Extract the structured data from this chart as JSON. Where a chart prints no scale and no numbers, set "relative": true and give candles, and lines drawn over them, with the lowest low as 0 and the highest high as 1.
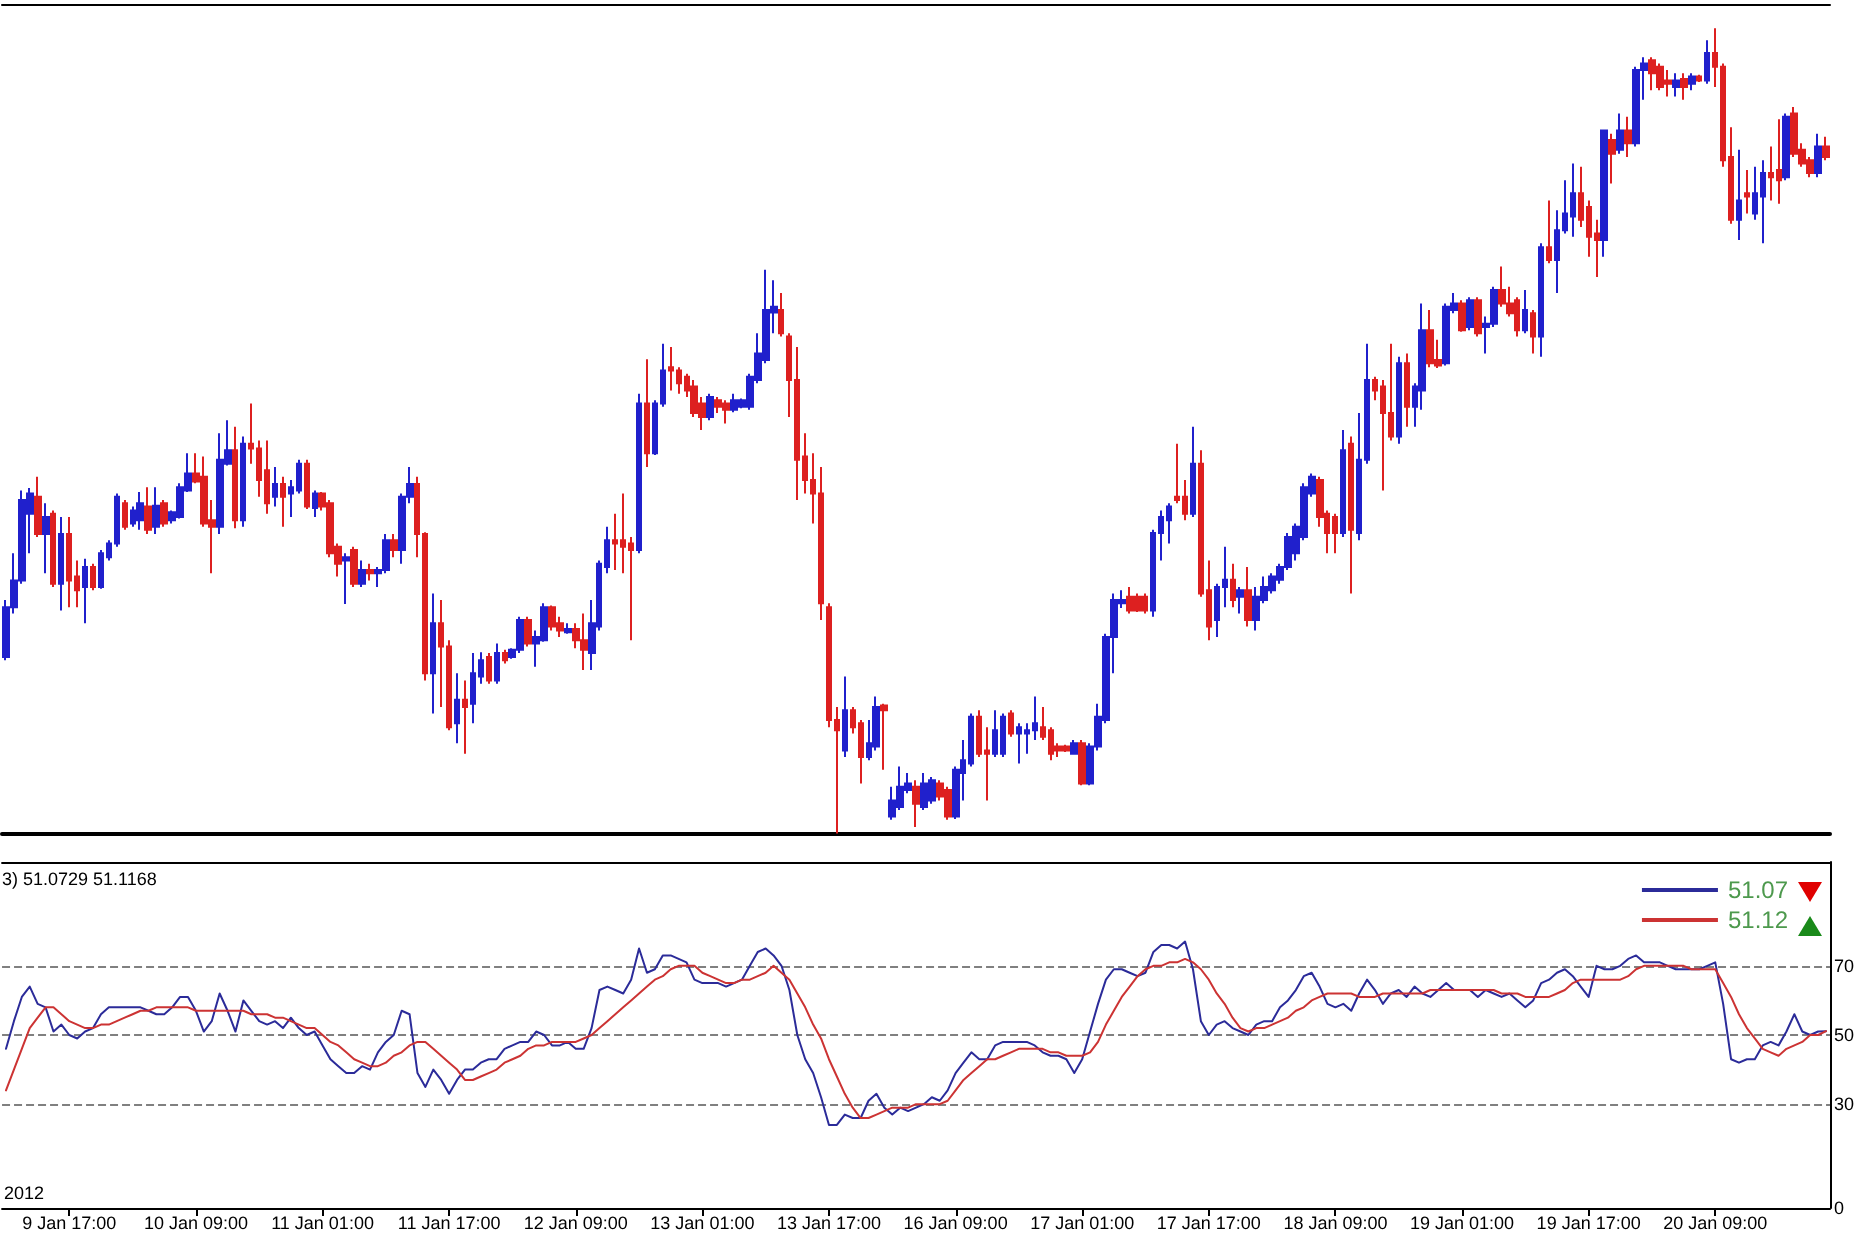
{
  "chart_data": [
    {
      "type": "candlestick",
      "relative": true,
      "categories": [
        null,
        null,
        null,
        null,
        null,
        null,
        null,
        null,
        "9 Jan 17:00",
        null,
        null,
        null,
        null,
        null,
        null,
        null,
        null,
        null,
        null,
        null,
        null,
        null,
        null,
        null,
        "10 Jan 09:00",
        null,
        null,
        null,
        null,
        null,
        null,
        null,
        null,
        null,
        null,
        null,
        null,
        null,
        null,
        null,
        "11 Jan 01:00",
        null,
        null,
        null,
        null,
        null,
        null,
        null,
        null,
        null,
        null,
        null,
        null,
        null,
        null,
        null,
        "11 Jan 17:00",
        null,
        null,
        null,
        null,
        null,
        null,
        null,
        null,
        null,
        null,
        null,
        null,
        null,
        null,
        null,
        "12 Jan 09:00",
        null,
        null,
        null,
        null,
        null,
        null,
        null,
        null,
        null,
        null,
        null,
        null,
        null,
        null,
        null,
        "13 Jan 01:00",
        null,
        null,
        null,
        null,
        null,
        null,
        null,
        null,
        null,
        null,
        null,
        null,
        null,
        null,
        null,
        "13 Jan 17:00",
        null,
        null,
        null,
        null,
        null,
        null,
        null,
        null,
        null,
        null,
        null,
        null,
        null,
        null,
        null,
        "16 Jan 09:00",
        null,
        null,
        null,
        null,
        null,
        null,
        null,
        null,
        null,
        null,
        null,
        null,
        null,
        null,
        null,
        "17 Jan 01:00",
        null,
        null,
        null,
        null,
        null,
        null,
        null,
        null,
        null,
        null,
        null,
        null,
        null,
        null,
        null,
        "17 Jan 17:00",
        null,
        null,
        null,
        null,
        null,
        null,
        null,
        null,
        null,
        null,
        null,
        null,
        null,
        null,
        null,
        "18 Jan 09:00",
        null,
        null,
        null,
        null,
        null,
        null,
        null,
        null,
        null,
        null,
        null,
        null,
        null,
        null,
        null,
        "19 Jan 01:00",
        null,
        null,
        null,
        null,
        null,
        null,
        null,
        null,
        null,
        null,
        null,
        null,
        null,
        null,
        null,
        "19 Jan 17:00",
        null,
        null,
        null,
        null,
        null,
        null,
        null,
        null,
        null,
        null,
        null,
        null,
        null,
        null,
        null,
        "20 Jan 09:00",
        null,
        null,
        null,
        null,
        null,
        null,
        null,
        null,
        null,
        null,
        null,
        null,
        null,
        null
      ],
      "ohlc": [
        [
          0.219,
          0.29,
          0.215,
          0.281
        ],
        [
          0.281,
          0.348,
          0.273,
          0.314
        ],
        [
          0.314,
          0.426,
          0.31,
          0.414
        ],
        [
          0.397,
          0.429,
          0.348,
          0.422
        ],
        [
          0.418,
          0.443,
          0.368,
          0.372
        ],
        [
          0.372,
          0.41,
          0.323,
          0.393
        ],
        [
          0.397,
          0.401,
          0.306,
          0.31
        ],
        [
          0.31,
          0.393,
          0.277,
          0.372
        ],
        [
          0.372,
          0.393,
          0.281,
          0.314
        ],
        [
          0.319,
          0.339,
          0.281,
          0.302
        ],
        [
          0.306,
          0.341,
          0.261,
          0.331
        ],
        [
          0.331,
          0.335,
          0.302,
          0.306
        ],
        [
          0.306,
          0.352,
          0.304,
          0.348
        ],
        [
          0.343,
          0.364,
          0.339,
          0.36
        ],
        [
          0.36,
          0.422,
          0.356,
          0.418
        ],
        [
          0.41,
          0.414,
          0.377,
          0.381
        ],
        [
          0.385,
          0.406,
          0.381,
          0.401
        ],
        [
          0.389,
          0.424,
          0.377,
          0.41
        ],
        [
          0.406,
          0.43,
          0.372,
          0.377
        ],
        [
          0.381,
          0.43,
          0.372,
          0.407
        ],
        [
          0.41,
          0.414,
          0.381,
          0.385
        ],
        [
          0.389,
          0.401,
          0.385,
          0.399
        ],
        [
          0.393,
          0.435,
          0.391,
          0.43
        ],
        [
          0.426,
          0.472,
          0.424,
          0.447
        ],
        [
          0.447,
          0.472,
          0.435,
          0.437
        ],
        [
          0.443,
          0.468,
          0.381,
          0.385
        ],
        [
          0.389,
          0.414,
          0.323,
          0.381
        ],
        [
          0.381,
          0.497,
          0.372,
          0.464
        ],
        [
          0.459,
          0.513,
          0.457,
          0.476
        ],
        [
          0.476,
          0.505,
          0.379,
          0.389
        ],
        [
          0.389,
          0.493,
          0.381,
          0.484
        ],
        [
          0.484,
          0.534,
          0.459,
          0.478
        ],
        [
          0.478,
          0.488,
          0.418,
          0.439
        ],
        [
          0.451,
          0.488,
          0.397,
          0.41
        ],
        [
          0.418,
          0.455,
          0.406,
          0.434
        ],
        [
          0.434,
          0.443,
          0.381,
          0.418
        ],
        [
          0.422,
          0.439,
          0.393,
          0.43
        ],
        [
          0.426,
          0.464,
          0.422,
          0.459
        ],
        [
          0.459,
          0.464,
          0.403,
          0.406
        ],
        [
          0.404,
          0.426,
          0.393,
          0.422
        ],
        [
          0.422,
          0.424,
          0.401,
          0.406
        ],
        [
          0.41,
          0.414,
          0.343,
          0.348
        ],
        [
          0.356,
          0.36,
          0.319,
          0.335
        ],
        [
          0.339,
          0.348,
          0.285,
          0.343
        ],
        [
          0.352,
          0.356,
          0.306,
          0.31
        ],
        [
          0.31,
          0.339,
          0.306,
          0.327
        ],
        [
          0.327,
          0.335,
          0.314,
          0.323
        ],
        [
          0.323,
          0.331,
          0.306,
          0.327
        ],
        [
          0.327,
          0.372,
          0.323,
          0.364
        ],
        [
          0.364,
          0.372,
          0.343,
          0.352
        ],
        [
          0.352,
          0.422,
          0.335,
          0.418
        ],
        [
          0.418,
          0.455,
          0.41,
          0.434
        ],
        [
          0.434,
          0.443,
          0.343,
          0.372
        ],
        [
          0.372,
          0.374,
          0.19,
          0.199
        ],
        [
          0.199,
          0.298,
          0.149,
          0.261
        ],
        [
          0.261,
          0.29,
          0.157,
          0.232
        ],
        [
          0.232,
          0.24,
          0.128,
          0.132
        ],
        [
          0.137,
          0.199,
          0.112,
          0.166
        ],
        [
          0.166,
          0.19,
          0.099,
          0.157
        ],
        [
          0.161,
          0.224,
          0.137,
          0.199
        ],
        [
          0.195,
          0.225,
          0.186,
          0.215
        ],
        [
          0.219,
          0.224,
          0.186,
          0.19
        ],
        [
          0.19,
          0.236,
          0.186,
          0.224
        ],
        [
          0.224,
          0.228,
          0.211,
          0.215
        ],
        [
          0.219,
          0.23,
          0.217,
          0.228
        ],
        [
          0.228,
          0.269,
          0.224,
          0.265
        ],
        [
          0.265,
          0.269,
          0.232,
          0.236
        ],
        [
          0.236,
          0.252,
          0.207,
          0.244
        ],
        [
          0.24,
          0.286,
          0.238,
          0.281
        ],
        [
          0.281,
          0.283,
          0.252,
          0.257
        ],
        [
          0.261,
          0.269,
          0.244,
          0.252
        ],
        [
          0.25,
          0.261,
          0.248,
          0.254
        ],
        [
          0.254,
          0.261,
          0.23,
          0.24
        ],
        [
          0.24,
          0.273,
          0.203,
          0.228
        ],
        [
          0.224,
          0.29,
          0.203,
          0.261
        ],
        [
          0.257,
          0.339,
          0.252,
          0.335
        ],
        [
          0.331,
          0.381,
          0.323,
          0.364
        ],
        [
          0.364,
          0.397,
          0.327,
          0.36
        ],
        [
          0.364,
          0.422,
          0.323,
          0.356
        ],
        [
          0.36,
          0.368,
          0.24,
          0.352
        ],
        [
          0.352,
          0.546,
          0.348,
          0.534
        ],
        [
          0.534,
          0.589,
          0.455,
          0.472
        ],
        [
          0.472,
          0.538,
          0.47,
          0.534
        ],
        [
          0.534,
          0.608,
          0.53,
          0.575
        ],
        [
          0.579,
          0.604,
          0.55,
          0.575
        ],
        [
          0.575,
          0.579,
          0.546,
          0.559
        ],
        [
          0.567,
          0.571,
          0.542,
          0.55
        ],
        [
          0.555,
          0.563,
          0.517,
          0.522
        ],
        [
          0.534,
          0.542,
          0.501,
          0.517
        ],
        [
          0.517,
          0.546,
          0.513,
          0.542
        ],
        [
          0.538,
          0.542,
          0.522,
          0.53
        ],
        [
          0.534,
          0.538,
          0.509,
          0.526
        ],
        [
          0.526,
          0.546,
          0.523,
          0.538
        ],
        [
          0.53,
          0.54,
          0.528,
          0.538
        ],
        [
          0.53,
          0.571,
          0.526,
          0.567
        ],
        [
          0.563,
          0.621,
          0.559,
          0.596
        ],
        [
          0.588,
          0.7,
          0.584,
          0.65
        ],
        [
          0.647,
          0.687,
          0.621,
          0.654
        ],
        [
          0.65,
          0.671,
          0.617,
          0.621
        ],
        [
          0.617,
          0.621,
          0.517,
          0.563
        ],
        [
          0.563,
          0.604,
          0.414,
          0.464
        ],
        [
          0.468,
          0.497,
          0.422,
          0.439
        ],
        [
          0.439,
          0.472,
          0.385,
          0.422
        ],
        [
          0.422,
          0.455,
          0.265,
          0.286
        ],
        [
          0.281,
          0.286,
          0.132,
          0.141
        ],
        [
          0.141,
          0.157,
          0.0,
          0.128
        ],
        [
          0.103,
          0.195,
          0.095,
          0.153
        ],
        [
          0.153,
          0.157,
          0.124,
          0.132
        ],
        [
          0.137,
          0.141,
          0.062,
          0.095
        ],
        [
          0.095,
          0.141,
          0.091,
          0.112
        ],
        [
          0.108,
          0.17,
          0.103,
          0.157
        ],
        [
          0.159,
          0.161,
          0.079,
          0.153
        ],
        [
          0.021,
          0.058,
          0.017,
          0.041
        ],
        [
          0.033,
          0.083,
          0.029,
          0.058
        ],
        [
          0.054,
          0.075,
          0.05,
          0.062
        ],
        [
          0.058,
          0.066,
          0.008,
          0.037
        ],
        [
          0.033,
          0.075,
          0.029,
          0.062
        ],
        [
          0.041,
          0.07,
          0.037,
          0.066
        ],
        [
          0.062,
          0.066,
          0.041,
          0.046
        ],
        [
          0.054,
          0.058,
          0.017,
          0.021
        ],
        [
          0.021,
          0.083,
          0.018,
          0.079
        ],
        [
          0.075,
          0.116,
          0.041,
          0.091
        ],
        [
          0.087,
          0.149,
          0.083,
          0.145
        ],
        [
          0.145,
          0.153,
          0.095,
          0.099
        ],
        [
          0.103,
          0.132,
          0.041,
          0.099
        ],
        [
          0.099,
          0.153,
          0.095,
          0.128
        ],
        [
          0.099,
          0.149,
          0.095,
          0.145
        ],
        [
          0.149,
          0.153,
          0.12,
          0.124
        ],
        [
          0.124,
          0.137,
          0.087,
          0.132
        ],
        [
          0.124,
          0.137,
          0.099,
          0.128
        ],
        [
          0.128,
          0.17,
          0.116,
          0.137
        ],
        [
          0.132,
          0.157,
          0.116,
          0.12
        ],
        [
          0.128,
          0.132,
          0.091,
          0.099
        ],
        [
          0.108,
          0.112,
          0.095,
          0.103
        ],
        [
          0.108,
          0.11,
          0.101,
          0.103
        ],
        [
          0.099,
          0.116,
          0.098,
          0.112
        ],
        [
          0.112,
          0.116,
          0.06,
          0.062
        ],
        [
          0.062,
          0.112,
          0.06,
          0.108
        ],
        [
          0.108,
          0.161,
          0.103,
          0.145
        ],
        [
          0.141,
          0.248,
          0.137,
          0.244
        ],
        [
          0.244,
          0.298,
          0.199,
          0.29
        ],
        [
          0.286,
          0.302,
          0.28,
          0.29
        ],
        [
          0.294,
          0.306,
          0.273,
          0.277
        ],
        [
          0.294,
          0.298,
          0.275,
          0.277
        ],
        [
          0.294,
          0.298,
          0.273,
          0.277
        ],
        [
          0.277,
          0.377,
          0.269,
          0.373
        ],
        [
          0.373,
          0.401,
          0.339,
          0.393
        ],
        [
          0.389,
          0.41,
          0.36,
          0.406
        ],
        [
          0.418,
          0.484,
          0.41,
          0.414
        ],
        [
          0.418,
          0.439,
          0.389,
          0.397
        ],
        [
          0.397,
          0.505,
          0.393,
          0.459
        ],
        [
          0.459,
          0.476,
          0.294,
          0.298
        ],
        [
          0.302,
          0.339,
          0.24,
          0.257
        ],
        [
          0.265,
          0.31,
          0.244,
          0.306
        ],
        [
          0.306,
          0.356,
          0.281,
          0.315
        ],
        [
          0.315,
          0.335,
          0.281,
          0.29
        ],
        [
          0.294,
          0.306,
          0.273,
          0.302
        ],
        [
          0.302,
          0.331,
          0.257,
          0.265
        ],
        [
          0.265,
          0.306,
          0.252,
          0.294
        ],
        [
          0.29,
          0.319,
          0.286,
          0.306
        ],
        [
          0.302,
          0.323,
          0.298,
          0.319
        ],
        [
          0.315,
          0.335,
          0.31,
          0.331
        ],
        [
          0.331,
          0.373,
          0.327,
          0.368
        ],
        [
          0.348,
          0.385,
          0.339,
          0.381
        ],
        [
          0.368,
          0.435,
          0.364,
          0.43
        ],
        [
          0.422,
          0.447,
          0.418,
          0.443
        ],
        [
          0.439,
          0.443,
          0.381,
          0.393
        ],
        [
          0.397,
          0.401,
          0.348,
          0.373
        ],
        [
          0.393,
          0.397,
          0.348,
          0.373
        ],
        [
          0.373,
          0.501,
          0.368,
          0.476
        ],
        [
          0.484,
          0.493,
          0.298,
          0.377
        ],
        [
          0.373,
          0.522,
          0.364,
          0.464
        ],
        [
          0.464,
          0.608,
          0.459,
          0.563
        ],
        [
          0.563,
          0.567,
          0.538,
          0.55
        ],
        [
          0.555,
          0.563,
          0.426,
          0.522
        ],
        [
          0.522,
          0.608,
          0.488,
          0.493
        ],
        [
          0.493,
          0.592,
          0.484,
          0.584
        ],
        [
          0.584,
          0.596,
          0.505,
          0.53
        ],
        [
          0.53,
          0.559,
          0.505,
          0.555
        ],
        [
          0.55,
          0.658,
          0.526,
          0.625
        ],
        [
          0.625,
          0.65,
          0.579,
          0.584
        ],
        [
          0.588,
          0.613,
          0.578,
          0.581
        ],
        [
          0.584,
          0.658,
          0.581,
          0.654
        ],
        [
          0.65,
          0.671,
          0.646,
          0.658
        ],
        [
          0.658,
          0.662,
          0.623,
          0.625
        ],
        [
          0.629,
          0.666,
          0.625,
          0.662
        ],
        [
          0.662,
          0.666,
          0.617,
          0.621
        ],
        [
          0.629,
          0.642,
          0.596,
          0.633
        ],
        [
          0.633,
          0.679,
          0.629,
          0.675
        ],
        [
          0.675,
          0.704,
          0.654,
          0.658
        ],
        [
          0.658,
          0.679,
          0.642,
          0.646
        ],
        [
          0.662,
          0.666,
          0.617,
          0.625
        ],
        [
          0.625,
          0.675,
          0.621,
          0.65
        ],
        [
          0.646,
          0.65,
          0.596,
          0.617
        ],
        [
          0.617,
          0.733,
          0.592,
          0.728
        ],
        [
          0.728,
          0.786,
          0.708,
          0.712
        ],
        [
          0.712,
          0.774,
          0.671,
          0.749
        ],
        [
          0.749,
          0.811,
          0.745,
          0.77
        ],
        [
          0.766,
          0.832,
          0.741,
          0.795
        ],
        [
          0.795,
          0.828,
          0.753,
          0.762
        ],
        [
          0.778,
          0.786,
          0.716,
          0.741
        ],
        [
          0.745,
          0.762,
          0.691,
          0.737
        ],
        [
          0.737,
          0.873,
          0.716,
          0.873
        ],
        [
          0.861,
          0.869,
          0.807,
          0.844
        ],
        [
          0.849,
          0.894,
          0.844,
          0.873
        ],
        [
          0.873,
          0.89,
          0.84,
          0.857
        ],
        [
          0.857,
          0.952,
          0.853,
          0.948
        ],
        [
          0.948,
          0.964,
          0.911,
          0.956
        ],
        [
          0.96,
          0.964,
          0.923,
          0.944
        ],
        [
          0.952,
          0.956,
          0.923,
          0.927
        ],
        [
          0.935,
          0.948,
          0.915,
          0.931
        ],
        [
          0.927,
          0.944,
          0.915,
          0.935
        ],
        [
          0.937,
          0.944,
          0.911,
          0.927
        ],
        [
          0.931,
          0.944,
          0.923,
          0.94
        ],
        [
          0.94,
          0.942,
          0.933,
          0.935
        ],
        [
          0.935,
          0.985,
          0.931,
          0.969
        ],
        [
          0.969,
          1.0,
          0.927,
          0.952
        ],
        [
          0.952,
          0.956,
          0.828,
          0.836
        ],
        [
          0.84,
          0.877,
          0.757,
          0.762
        ],
        [
          0.762,
          0.849,
          0.737,
          0.786
        ],
        [
          0.795,
          0.824,
          0.77,
          0.791
        ],
        [
          0.77,
          0.828,
          0.762,
          0.795
        ],
        [
          0.791,
          0.836,
          0.733,
          0.82
        ],
        [
          0.82,
          0.853,
          0.786,
          0.815
        ],
        [
          0.824,
          0.887,
          0.782,
          0.811
        ],
        [
          0.815,
          0.894,
          0.811,
          0.89
        ],
        [
          0.894,
          0.902,
          0.84,
          0.844
        ],
        [
          0.849,
          0.857,
          0.828,
          0.832
        ],
        [
          0.836,
          0.84,
          0.815,
          0.82
        ],
        [
          0.82,
          0.869,
          0.815,
          0.853
        ],
        [
          0.853,
          0.865,
          0.836,
          0.84
        ]
      ],
      "colors": [
        "#2020cc",
        "#2020cc",
        "#2020cc",
        "#2020cc",
        "#dd2020",
        "#2020cc",
        "#dd2020",
        "#2020cc",
        "#dd2020",
        "#dd2020",
        "#2020cc",
        "#dd2020",
        "#2020cc",
        "#2020cc",
        "#2020cc",
        "#dd2020",
        "#2020cc",
        "#2020cc",
        "#dd2020",
        "#2020cc",
        "#dd2020",
        "#2020cc",
        "#2020cc",
        "#2020cc",
        "#dd2020",
        "#dd2020",
        "#dd2020",
        "#2020cc",
        "#2020cc",
        "#dd2020",
        "#2020cc",
        "#dd2020",
        "#dd2020",
        "#dd2020",
        "#2020cc",
        "#dd2020",
        "#2020cc",
        "#2020cc",
        "#dd2020",
        "#2020cc",
        "#dd2020",
        "#dd2020",
        "#dd2020",
        "#2020cc",
        "#dd2020",
        "#2020cc",
        "#dd2020",
        "#2020cc",
        "#2020cc",
        "#dd2020",
        "#2020cc",
        "#2020cc",
        "#dd2020",
        "#dd2020",
        "#2020cc",
        "#dd2020",
        "#dd2020",
        "#2020cc",
        "#dd2020",
        "#2020cc",
        "#2020cc",
        "#dd2020",
        "#2020cc",
        "#dd2020",
        "#2020cc",
        "#2020cc",
        "#dd2020",
        "#2020cc",
        "#2020cc",
        "#dd2020",
        "#dd2020",
        "#2020cc",
        "#dd2020",
        "#dd2020",
        "#2020cc",
        "#2020cc",
        "#2020cc",
        "#dd2020",
        "#dd2020",
        "#dd2020",
        "#2020cc",
        "#dd2020",
        "#2020cc",
        "#2020cc",
        "#dd2020",
        "#dd2020",
        "#dd2020",
        "#dd2020",
        "#dd2020",
        "#2020cc",
        "#dd2020",
        "#dd2020",
        "#2020cc",
        "#2020cc",
        "#2020cc",
        "#2020cc",
        "#2020cc",
        "#2020cc",
        "#dd2020",
        "#dd2020",
        "#dd2020",
        "#dd2020",
        "#dd2020",
        "#dd2020",
        "#dd2020",
        "#dd2020",
        "#2020cc",
        "#dd2020",
        "#dd2020",
        "#2020cc",
        "#2020cc",
        "#dd2020",
        "#2020cc",
        "#2020cc",
        "#2020cc",
        "#dd2020",
        "#2020cc",
        "#2020cc",
        "#dd2020",
        "#dd2020",
        "#2020cc",
        "#2020cc",
        "#2020cc",
        "#dd2020",
        "#dd2020",
        "#2020cc",
        "#2020cc",
        "#dd2020",
        "#2020cc",
        "#2020cc",
        "#2020cc",
        "#dd2020",
        "#dd2020",
        "#dd2020",
        "#dd2020",
        "#2020cc",
        "#dd2020",
        "#2020cc",
        "#2020cc",
        "#2020cc",
        "#2020cc",
        "#2020cc",
        "#dd2020",
        "#dd2020",
        "#dd2020",
        "#2020cc",
        "#2020cc",
        "#2020cc",
        "#dd2020",
        "#dd2020",
        "#2020cc",
        "#dd2020",
        "#dd2020",
        "#2020cc",
        "#2020cc",
        "#dd2020",
        "#2020cc",
        "#dd2020",
        "#2020cc",
        "#2020cc",
        "#2020cc",
        "#2020cc",
        "#2020cc",
        "#2020cc",
        "#2020cc",
        "#2020cc",
        "#dd2020",
        "#dd2020",
        "#dd2020",
        "#2020cc",
        "#dd2020",
        "#2020cc",
        "#2020cc",
        "#dd2020",
        "#dd2020",
        "#dd2020",
        "#2020cc",
        "#dd2020",
        "#2020cc",
        "#2020cc",
        "#dd2020",
        "#dd2020",
        "#2020cc",
        "#2020cc",
        "#dd2020",
        "#2020cc",
        "#dd2020",
        "#2020cc",
        "#2020cc",
        "#dd2020",
        "#dd2020",
        "#dd2020",
        "#2020cc",
        "#dd2020",
        "#2020cc",
        "#dd2020",
        "#2020cc",
        "#2020cc",
        "#2020cc",
        "#dd2020",
        "#dd2020",
        "#dd2020",
        "#2020cc",
        "#dd2020",
        "#2020cc",
        "#dd2020",
        "#2020cc",
        "#2020cc",
        "#dd2020",
        "#dd2020",
        "#dd2020",
        "#2020cc",
        "#dd2020",
        "#2020cc",
        "#dd2020",
        "#2020cc",
        "#dd2020",
        "#dd2020",
        "#dd2020",
        "#2020cc",
        "#dd2020",
        "#2020cc",
        "#2020cc",
        "#dd2020",
        "#dd2020",
        "#2020cc",
        "#dd2020",
        "#dd2020",
        "#dd2020",
        "#2020cc",
        "#dd2020"
      ]
    },
    {
      "type": "line",
      "title": "3) 51.0729 51.1168",
      "legend": "top right",
      "marker": "none",
      "annotations": [
        "2012"
      ],
      "categories": [
        null,
        null,
        null,
        null,
        null,
        null,
        null,
        null,
        null,
        null,
        null,
        null,
        null,
        null,
        null,
        null,
        null,
        null,
        null,
        null,
        null,
        null,
        null,
        null,
        null,
        null,
        null,
        null,
        null,
        null,
        null,
        null,
        null,
        null,
        null,
        null,
        null,
        null,
        null,
        null,
        null,
        null,
        null,
        null,
        null,
        null,
        null,
        null,
        null,
        null,
        null,
        null,
        null,
        null,
        null,
        null,
        null,
        null,
        null,
        null,
        null,
        null,
        null,
        null,
        null,
        null,
        null,
        null,
        null,
        null,
        null,
        null,
        null,
        null,
        null,
        null,
        null,
        null,
        null,
        null,
        null,
        null,
        null,
        null,
        null,
        null,
        null,
        null,
        null,
        null,
        null,
        null,
        null,
        null,
        null,
        null,
        null,
        null,
        null,
        null,
        null,
        null,
        null,
        null,
        null,
        null,
        null,
        null,
        null,
        null,
        null,
        null,
        null,
        null,
        null,
        null,
        null,
        null,
        null,
        null,
        null,
        null,
        null,
        null,
        null,
        null,
        null,
        null,
        null,
        null,
        null,
        null,
        null,
        null,
        null,
        null,
        null,
        null,
        null,
        null,
        null,
        null,
        null,
        null,
        null,
        null,
        null,
        null,
        null,
        null,
        null,
        null,
        null,
        null,
        null,
        null,
        null,
        null,
        null,
        null,
        null,
        null,
        null,
        null,
        null,
        null,
        null,
        null,
        null,
        null,
        null,
        null,
        null,
        null,
        null,
        null,
        null,
        null,
        null,
        null,
        null,
        null,
        null,
        null,
        null,
        null,
        null,
        null,
        null,
        null,
        null,
        null,
        null,
        null,
        null,
        null,
        null,
        null,
        null,
        null,
        null,
        null,
        null,
        null,
        null,
        null,
        null,
        null,
        null,
        null,
        null,
        null,
        null,
        null,
        null,
        null,
        null,
        null,
        null,
        null,
        null,
        null,
        null,
        null,
        null,
        null,
        null,
        null,
        null,
        null,
        null
      ],
      "series": [
        {
          "name": "51.07",
          "color": "#2b2b99",
          "values": [
            46,
            54,
            61,
            64,
            59,
            58,
            51,
            53,
            50,
            49,
            51,
            52,
            56,
            58,
            58,
            58,
            58,
            58,
            57,
            56,
            56,
            58,
            61,
            61,
            57,
            51,
            54,
            62,
            57,
            51,
            60,
            57,
            54,
            53,
            54,
            52,
            55,
            52,
            50,
            51,
            47,
            43,
            41,
            39,
            39,
            41,
            40,
            45,
            48,
            50,
            57,
            56,
            39,
            35,
            40,
            37,
            33,
            37,
            40,
            40,
            42,
            43,
            43,
            46,
            47,
            48,
            48,
            51,
            50,
            47,
            47,
            48,
            46,
            46,
            52,
            63,
            64,
            63,
            62,
            66,
            75,
            68,
            69,
            73,
            73,
            72,
            71,
            66,
            65,
            65,
            65,
            64,
            65,
            66,
            70,
            74,
            75,
            73,
            70,
            63,
            50,
            43,
            39,
            32,
            24,
            24,
            27,
            26,
            26,
            31,
            33,
            29,
            27,
            29,
            28,
            29,
            30,
            32,
            31,
            34,
            39,
            42,
            45,
            43,
            43,
            47,
            48,
            48,
            48,
            48,
            47,
            45,
            44,
            44,
            43,
            39,
            43,
            51,
            59,
            66,
            69,
            69,
            68,
            67,
            68,
            74,
            76,
            76,
            75,
            77,
            69,
            54,
            50,
            53,
            54,
            52,
            51,
            50,
            53,
            54,
            54,
            58,
            60,
            63,
            67,
            68,
            64,
            59,
            58,
            59,
            57,
            62,
            66,
            63,
            59,
            62,
            63,
            61,
            64,
            62,
            61,
            63,
            65,
            63,
            63,
            63,
            61,
            63,
            62,
            61,
            62,
            60,
            58,
            60,
            65,
            66,
            68,
            69,
            67,
            64,
            61,
            70,
            69,
            69,
            70,
            72,
            73,
            71,
            71,
            71,
            70,
            69,
            69,
            69,
            69,
            70,
            71,
            59,
            43,
            42,
            43,
            43,
            47,
            48,
            47,
            51,
            56,
            51,
            50,
            51,
            51.07
          ]
        },
        {
          "name": "51.12",
          "color": "#cc3333",
          "values": [
            34,
            40,
            46,
            52,
            55,
            58,
            58,
            56,
            54,
            53,
            52,
            52,
            53,
            53,
            54,
            55,
            56,
            57,
            57,
            58,
            58,
            58,
            58,
            58,
            57,
            57,
            57,
            57,
            57,
            57,
            57,
            56,
            56,
            56,
            55,
            55,
            54,
            53,
            52,
            52,
            50,
            48,
            47,
            45,
            43,
            42,
            41,
            41,
            42,
            44,
            45,
            47,
            48,
            48,
            46,
            44,
            42,
            40,
            37,
            37,
            38,
            39,
            40,
            42,
            43,
            44,
            46,
            47,
            47,
            48,
            48,
            48,
            48,
            49,
            50,
            52,
            54,
            56,
            58,
            60,
            62,
            64,
            66,
            67,
            69,
            70,
            70,
            70,
            68,
            67,
            66,
            65,
            65,
            66,
            66,
            67,
            68,
            70,
            68,
            66,
            62,
            58,
            53,
            49,
            43,
            38,
            33,
            29,
            26,
            26,
            27,
            28,
            29,
            29,
            29,
            30,
            30,
            30,
            30,
            31,
            34,
            37,
            39,
            41,
            43,
            43,
            44,
            45,
            46,
            46,
            46,
            46,
            45,
            45,
            44,
            44,
            44,
            45,
            48,
            53,
            57,
            61,
            64,
            67,
            69,
            70,
            70,
            71,
            71,
            72,
            71,
            69,
            66,
            62,
            59,
            55,
            52,
            51,
            52,
            52,
            53,
            54,
            55,
            57,
            58,
            60,
            61,
            62,
            62,
            62,
            62,
            61,
            61,
            61,
            62,
            62,
            62,
            62,
            62,
            62,
            63,
            63,
            63,
            63,
            63,
            63,
            63,
            63,
            63,
            62,
            62,
            62,
            61,
            61,
            61,
            61,
            62,
            63,
            65,
            66,
            66,
            66,
            66,
            66,
            66,
            67,
            69,
            70,
            70,
            70,
            70,
            70,
            70,
            69,
            69,
            69,
            69,
            65,
            61,
            56,
            52,
            49,
            46,
            45,
            44,
            46,
            47,
            48,
            50,
            50,
            51.12
          ]
        }
      ],
      "ylim": [
        0,
        100
      ],
      "yticks": [
        0,
        30,
        50,
        70
      ],
      "ref_lines": [
        {
          "axis": "y",
          "value": 30,
          "color": "#808080",
          "line_style": "dashed"
        },
        {
          "axis": "y",
          "value": 50,
          "color": "#808080",
          "line_style": "dashed"
        },
        {
          "axis": "y",
          "value": 70,
          "color": "#808080",
          "line_style": "dashed"
        }
      ]
    }
  ]
}
